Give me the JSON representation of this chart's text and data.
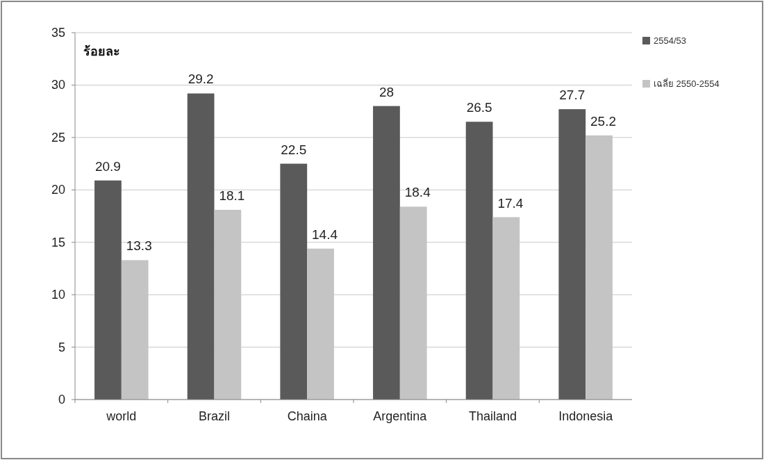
{
  "chart_data": {
    "type": "bar",
    "ylabel": "ร้อยละ",
    "categories": [
      "world",
      "Brazil",
      "Chaina",
      "Argentina",
      "Thailand",
      "Indonesia"
    ],
    "series": [
      {
        "name": "2554/53",
        "color": "#5a5a5a",
        "values": [
          20.9,
          29.2,
          22.5,
          28,
          26.5,
          27.7
        ]
      },
      {
        "name": "เฉลี่ย 2550-2554",
        "color": "#c4c4c4",
        "values": [
          13.3,
          18.1,
          14.4,
          18.4,
          17.4,
          25.2
        ]
      }
    ],
    "ylim": [
      0,
      35
    ],
    "yticks": [
      0,
      5,
      10,
      15,
      20,
      25,
      30,
      35
    ],
    "grid": "y",
    "legend": "right",
    "data_labels": true
  }
}
